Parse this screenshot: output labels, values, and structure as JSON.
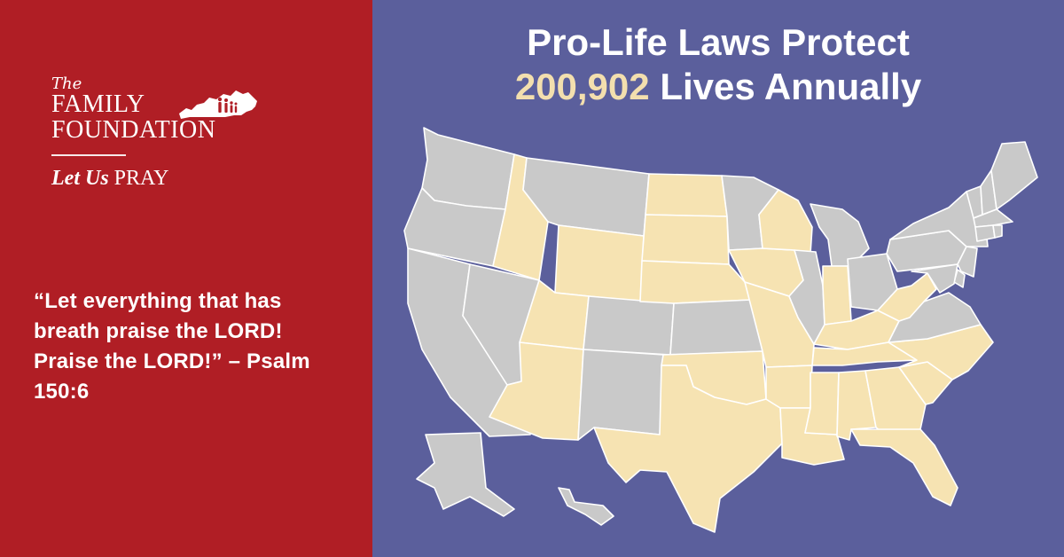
{
  "logo": {
    "the": "The",
    "family": "FAMILY",
    "foundation": "FOUNDATION",
    "tagline_italic": "Let Us",
    "tagline_regular": "PRAY",
    "state_icon": "kentucky-family-silhouette-icon"
  },
  "quote": {
    "text": "“Let everything that has breath praise the LORD! Praise the LORD!” – Psalm 150:6"
  },
  "headline": {
    "line1": "Pro-Life Laws Protect",
    "number": "200,902",
    "line2_rest": "Lives Annually"
  },
  "map": {
    "icon": "us-states-map",
    "protected_states": [
      "ID",
      "WY",
      "ND",
      "SD",
      "NE",
      "IA",
      "WI",
      "UT",
      "AZ",
      "MO",
      "IN",
      "KY",
      "WV",
      "NC",
      "SC",
      "GA",
      "FL",
      "AL",
      "MS",
      "LA",
      "AR",
      "OK",
      "TX",
      "TN"
    ],
    "other_states": [
      "WA",
      "OR",
      "CA",
      "NV",
      "MT",
      "CO",
      "NM",
      "KS",
      "MN",
      "IL",
      "MI",
      "OH",
      "PA",
      "NY",
      "VA",
      "AK",
      "HI",
      "ME",
      "VT",
      "NH",
      "MA",
      "CT",
      "RI",
      "NJ",
      "DE",
      "MD"
    ]
  },
  "colors": {
    "left_background": "#b01e25",
    "right_background": "#5b5f9c",
    "protected_state_fill": "#f6e3b2",
    "other_state_fill": "#c9c9c9",
    "highlight_number": "#f3dfae"
  }
}
